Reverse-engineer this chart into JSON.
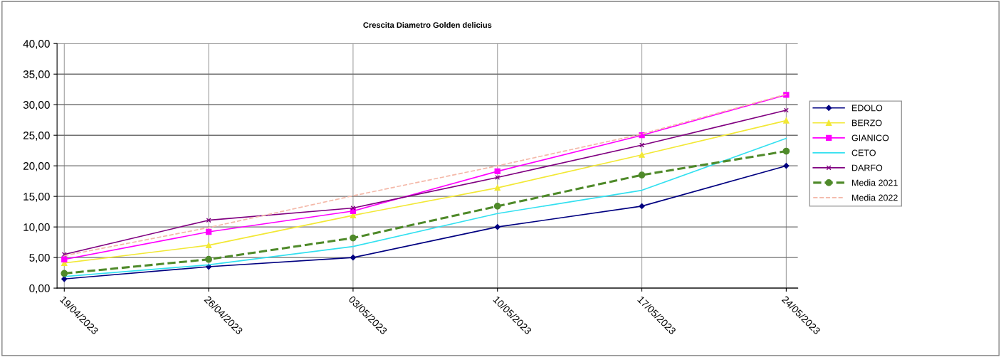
{
  "chart_data": {
    "type": "line",
    "title": "Crescita Diametro Golden delicius",
    "categories": [
      "19/04/2023",
      "26/04/2023",
      "03/05/2023",
      "10/05/2023",
      "17/05/2023",
      "24/05/2023"
    ],
    "series": [
      {
        "name": "EDOLO",
        "color": "#000080",
        "marker": "diamond",
        "line_style": "solid",
        "values": [
          1.5,
          3.5,
          5.0,
          10.0,
          13.4,
          20.0
        ]
      },
      {
        "name": "BERZO",
        "color": "#f2e835",
        "marker": "triangle",
        "line_style": "solid",
        "values": [
          4.1,
          7.0,
          11.9,
          16.4,
          21.8,
          27.4
        ]
      },
      {
        "name": "GIANICO",
        "color": "#ff00ff",
        "marker": "square",
        "line_style": "solid",
        "values": [
          4.7,
          9.2,
          12.6,
          19.1,
          25.0,
          31.6
        ]
      },
      {
        "name": "CETO",
        "color": "#33e0f0",
        "marker": "none",
        "line_style": "solid",
        "values": [
          1.9,
          3.8,
          6.8,
          12.2,
          16.0,
          24.5
        ]
      },
      {
        "name": "DARFO",
        "color": "#800080",
        "marker": "cross",
        "line_style": "solid",
        "values": [
          5.5,
          11.1,
          13.1,
          18.1,
          23.4,
          29.1
        ]
      },
      {
        "name": "Media 2021",
        "color": "#4f8a2a",
        "marker": "circle",
        "line_style": "dashed",
        "values": [
          2.4,
          4.7,
          8.2,
          13.4,
          18.5,
          22.4
        ]
      },
      {
        "name": "Media 2022",
        "color": "#f4b8a8",
        "marker": "none",
        "line_style": "dashed",
        "values": [
          5.3,
          9.9,
          15.1,
          20.0,
          25.2,
          31.7
        ]
      }
    ],
    "ylim": [
      0,
      40
    ],
    "yticks": [
      {
        "value": 0,
        "label": "0,00"
      },
      {
        "value": 5,
        "label": "5,00"
      },
      {
        "value": 10,
        "label": "10,00"
      },
      {
        "value": 15,
        "label": "15,00"
      },
      {
        "value": 20,
        "label": "20,00"
      },
      {
        "value": 25,
        "label": "25,00"
      },
      {
        "value": 30,
        "label": "30,00"
      },
      {
        "value": 35,
        "label": "35,00"
      },
      {
        "value": 40,
        "label": "40,00"
      }
    ],
    "grid": true,
    "legend": "right"
  }
}
